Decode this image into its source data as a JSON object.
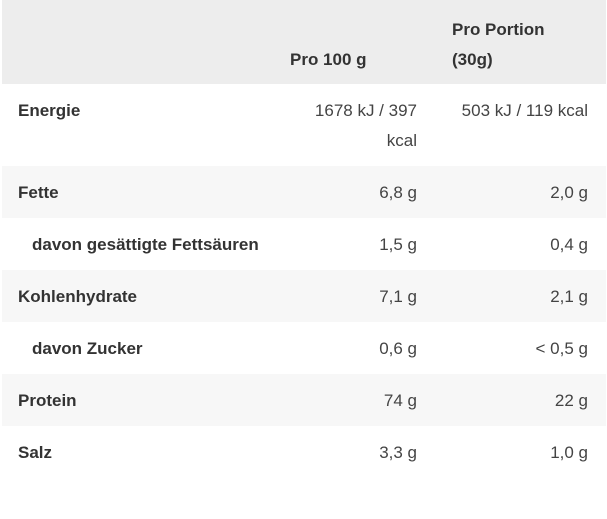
{
  "header": {
    "label_col": "",
    "per_100g": "Pro 100 g",
    "per_portion_line1": "Pro Portion",
    "per_portion_line2": "(30g)"
  },
  "rows": [
    {
      "label": "Energie",
      "per_100g": "1678 kJ / 397 kcal",
      "per_portion": "503 kJ / 119 kcal"
    },
    {
      "label": "Fette",
      "per_100g": "6,8 g",
      "per_portion": "2,0 g"
    },
    {
      "label": "davon gesättigte Fettsäuren",
      "per_100g": "1,5 g",
      "per_portion": "0,4 g"
    },
    {
      "label": "Kohlenhydrate",
      "per_100g": "7,1 g",
      "per_portion": "2,1 g"
    },
    {
      "label": "davon Zucker",
      "per_100g": "0,6 g",
      "per_portion": "< 0,5 g"
    },
    {
      "label": "Protein",
      "per_100g": "74 g",
      "per_portion": "22 g"
    },
    {
      "label": "Salz",
      "per_100g": "3,3 g",
      "per_portion": "1,0 g"
    }
  ]
}
